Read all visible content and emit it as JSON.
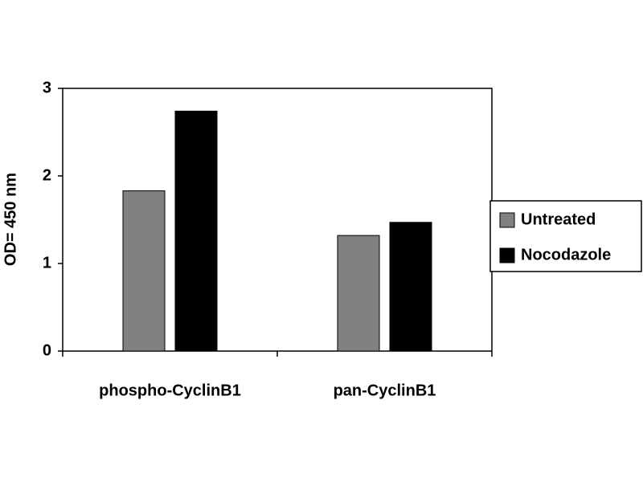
{
  "chart_data": {
    "type": "bar",
    "y_label": "OD= 450 nm",
    "categories": [
      "phospho-CyclinB1",
      "pan-CyclinB1"
    ],
    "series": [
      {
        "name": "Untreated",
        "color": "#808080",
        "values": [
          1.83,
          1.32
        ]
      },
      {
        "name": "Nocodazole",
        "color": "#000000",
        "values": [
          2.74,
          1.47
        ]
      }
    ],
    "ylim": [
      0,
      3
    ],
    "yticks": [
      0,
      1,
      2,
      3
    ],
    "legend": "right"
  }
}
